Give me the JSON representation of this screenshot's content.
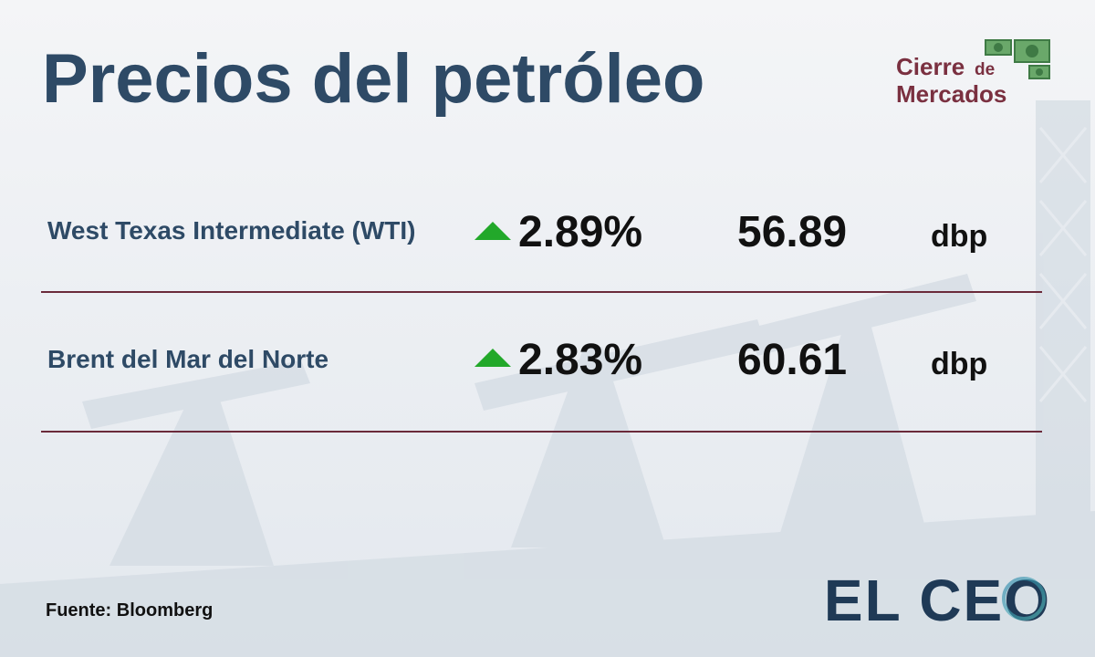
{
  "header": {
    "title": "Precios del petróleo",
    "brand": {
      "line1": "Cierre",
      "small": "de",
      "line2": "Mercados"
    }
  },
  "table": {
    "rows": [
      {
        "name": "West Texas Intermediate (WTI)",
        "change": "2.89%",
        "price": "56.89",
        "unit": "dbp"
      },
      {
        "name": "Brent del Mar del Norte",
        "change": "2.83%",
        "price": "60.61",
        "unit": "dbp"
      }
    ]
  },
  "footer": {
    "source": "Fuente: Bloomberg",
    "logo": "EL CEO"
  }
}
